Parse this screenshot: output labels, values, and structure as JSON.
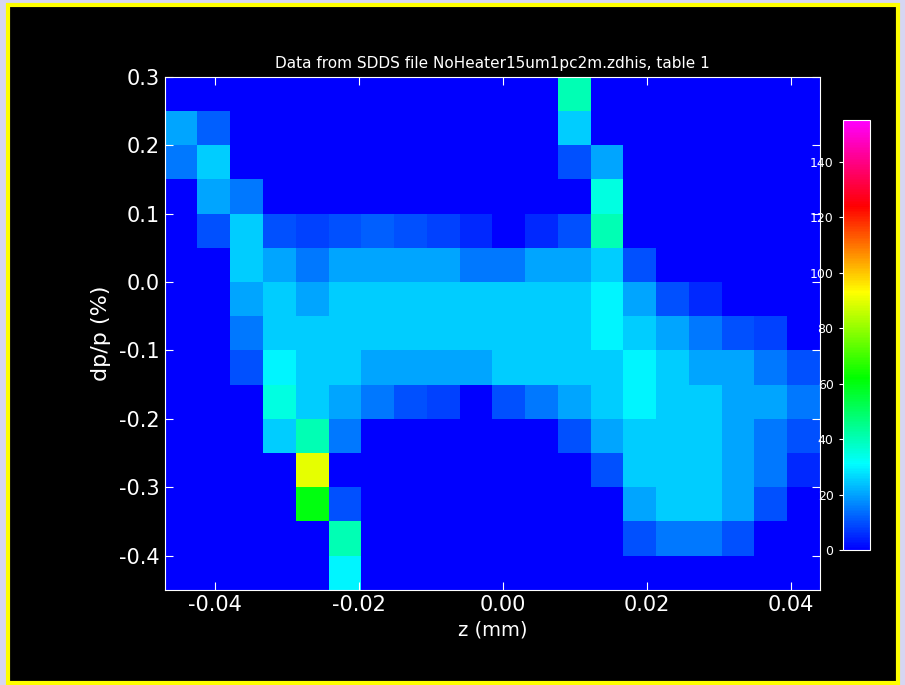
{
  "chart_data": {
    "type": "heatmap",
    "title": "Data from SDDS file NoHeater15um1pc2m.zdhis, table 1",
    "x_label": "z (mm)",
    "y_label": "dp/p (%)",
    "xlim": [
      -0.047,
      0.044
    ],
    "ylim": [
      -0.45,
      0.3
    ],
    "xticks": [
      -0.04,
      -0.02,
      {
        "value": 0.0,
        "label": "0.00"
      },
      0.02,
      0.04
    ],
    "yticks": [
      0.3,
      0.2,
      0.1,
      0.0,
      -0.1,
      -0.2,
      -0.3,
      -0.4
    ],
    "x_edges": [
      -0.047,
      -0.04245,
      -0.0379,
      -0.03335,
      -0.0288,
      -0.02425,
      -0.0197,
      -0.01515,
      -0.0106,
      -0.00605,
      -0.0015,
      0.00305,
      0.0076,
      0.01215,
      0.0167,
      0.02125,
      0.0258,
      0.03035,
      0.0349,
      0.03945,
      0.044
    ],
    "y_edges": [
      -0.45,
      -0.4,
      -0.35,
      -0.3,
      -0.25,
      -0.2,
      -0.15,
      -0.1,
      -0.05,
      0.0,
      0.05,
      0.1,
      0.15,
      0.2,
      0.25,
      0.3
    ],
    "cells": [
      [
        0,
        0,
        0,
        0,
        0,
        30,
        0,
        0,
        0,
        0,
        0,
        0,
        0,
        0,
        0,
        0,
        0,
        0,
        0,
        0
      ],
      [
        0,
        0,
        0,
        0,
        0,
        40,
        0,
        0,
        0,
        0,
        0,
        0,
        0,
        0,
        10,
        15,
        15,
        10,
        0,
        0
      ],
      [
        0,
        0,
        0,
        0,
        60,
        10,
        0,
        0,
        0,
        0,
        0,
        0,
        0,
        0,
        20,
        25,
        25,
        20,
        10,
        0
      ],
      [
        0,
        0,
        0,
        0,
        90,
        0,
        0,
        0,
        0,
        0,
        0,
        0,
        0,
        10,
        25,
        25,
        25,
        20,
        15,
        5
      ],
      [
        0,
        0,
        0,
        25,
        40,
        15,
        0,
        0,
        0,
        0,
        0,
        0,
        10,
        20,
        25,
        25,
        25,
        20,
        15,
        10
      ],
      [
        0,
        0,
        0,
        35,
        25,
        20,
        15,
        10,
        8,
        0,
        10,
        15,
        20,
        25,
        30,
        25,
        25,
        20,
        20,
        15
      ],
      [
        0,
        0,
        10,
        30,
        25,
        25,
        20,
        20,
        20,
        20,
        25,
        25,
        25,
        25,
        30,
        25,
        20,
        20,
        15,
        10
      ],
      [
        0,
        0,
        15,
        25,
        25,
        25,
        25,
        25,
        25,
        25,
        25,
        25,
        25,
        30,
        25,
        20,
        15,
        10,
        8,
        0
      ],
      [
        0,
        0,
        20,
        25,
        20,
        25,
        25,
        25,
        25,
        25,
        25,
        25,
        25,
        30,
        20,
        10,
        5,
        0,
        0,
        0
      ],
      [
        0,
        0,
        25,
        20,
        15,
        20,
        20,
        20,
        20,
        15,
        15,
        20,
        20,
        25,
        10,
        0,
        0,
        0,
        0,
        0
      ],
      [
        0,
        10,
        25,
        10,
        8,
        10,
        12,
        10,
        8,
        5,
        0,
        5,
        10,
        40,
        0,
        0,
        0,
        0,
        0,
        0
      ],
      [
        0,
        20,
        15,
        0,
        0,
        0,
        0,
        0,
        0,
        0,
        0,
        0,
        0,
        35,
        0,
        0,
        0,
        0,
        0,
        0
      ],
      [
        15,
        25,
        0,
        0,
        0,
        0,
        0,
        0,
        0,
        0,
        0,
        0,
        10,
        20,
        0,
        0,
        0,
        0,
        0,
        0
      ],
      [
        20,
        12,
        0,
        0,
        0,
        0,
        0,
        0,
        0,
        0,
        0,
        0,
        25,
        0,
        0,
        0,
        0,
        0,
        0,
        0
      ],
      [
        0,
        0,
        0,
        0,
        0,
        0,
        0,
        0,
        0,
        0,
        0,
        0,
        40,
        0,
        0,
        0,
        0,
        0,
        0,
        0
      ]
    ],
    "colorbar_range": [
      0,
      155
    ],
    "colorbar_ticks": [
      0,
      20,
      40,
      60,
      80,
      100,
      120,
      140
    ]
  }
}
